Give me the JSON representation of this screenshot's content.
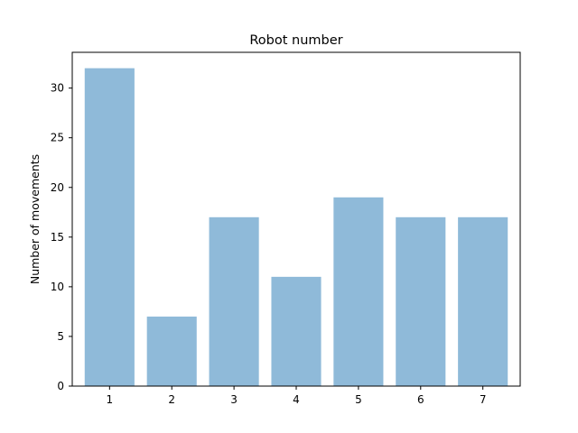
{
  "chart_data": {
    "type": "bar",
    "title": "Robot number",
    "xlabel": "",
    "ylabel": "Number of movements",
    "categories": [
      "1",
      "2",
      "3",
      "4",
      "5",
      "6",
      "7"
    ],
    "values": [
      32,
      7,
      17,
      11,
      19,
      17,
      17
    ],
    "ylim": [
      0,
      33.6
    ],
    "yticks": [
      0,
      5,
      10,
      15,
      20,
      25,
      30
    ],
    "bar_color": "#8fbad9",
    "grid": false,
    "legend": "none"
  }
}
